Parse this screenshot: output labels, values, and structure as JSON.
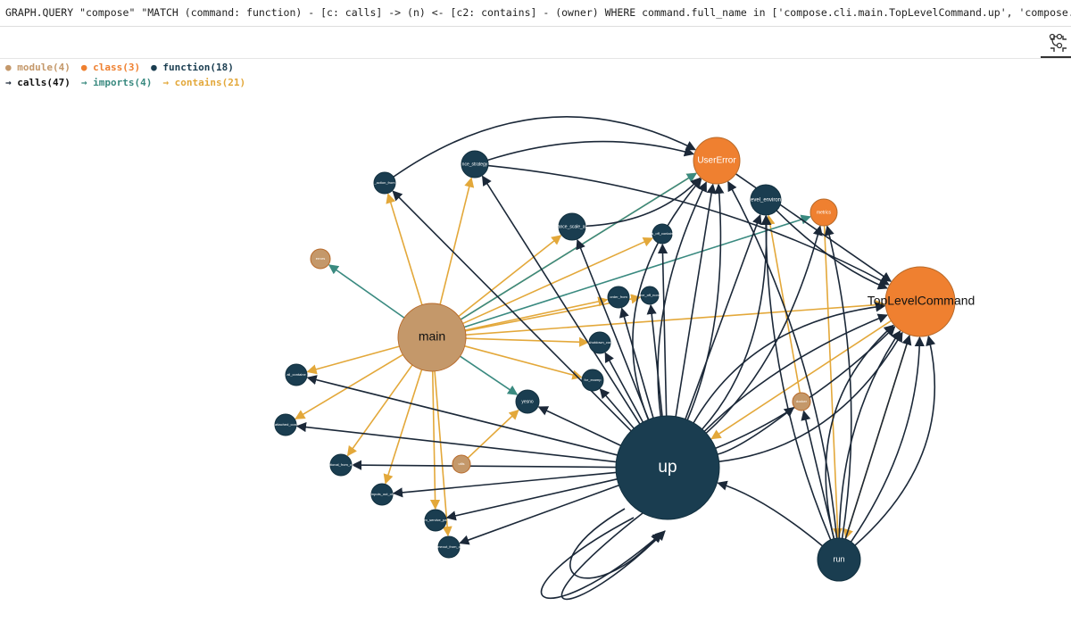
{
  "query": "GRAPH.QUERY \"compose\" \"MATCH (command: function) - [c: calls] -> (n) <- [c2: contains] - (owner) WHERE command.full_name in ['compose.cli.main.TopLevelCommand.up', 'compose.cli.main.TopLevelCommand.run'] RETURN",
  "legend": {
    "node_types": [
      {
        "label": "module(4)",
        "color": "#c4986a"
      },
      {
        "label": "class(3)",
        "color": "#ef8030"
      },
      {
        "label": "function(18)",
        "color": "#1a3d50"
      }
    ],
    "edge_types": [
      {
        "label": "calls(47)",
        "color": "#1b2838"
      },
      {
        "label": "imports(4)",
        "color": "#3a8a80"
      },
      {
        "label": "contains(21)",
        "color": "#e3a83a"
      }
    ]
  },
  "nodes": [
    {
      "label": "UserError"
    },
    {
      "label": "TopLevelCommand"
    },
    {
      "label": "metrics"
    },
    {
      "label": "main"
    },
    {
      "label": "errors"
    },
    {
      "label": "utils"
    },
    {
      "label": "docker"
    },
    {
      "label": "up"
    },
    {
      "label": "run"
    },
    {
      "label": "_action_from"
    },
    {
      "label": "nce_strategy"
    },
    {
      "label": "ance_scale_ar"
    },
    {
      "label": "evel_environ"
    },
    {
      "label": "s_off_contain"
    },
    {
      "label": "order_from"
    },
    {
      "label": "ove_off_none"
    },
    {
      "label": "shutdown_cor"
    },
    {
      "label": "for_examp"
    },
    {
      "label": "yesno"
    },
    {
      "label": "all_containe"
    },
    {
      "label": "attached_con"
    },
    {
      "label": "ptional_from_co"
    },
    {
      "label": "inputs_out_of"
    },
    {
      "label": "m_service_pa"
    },
    {
      "label": "meout_from_o"
    }
  ]
}
